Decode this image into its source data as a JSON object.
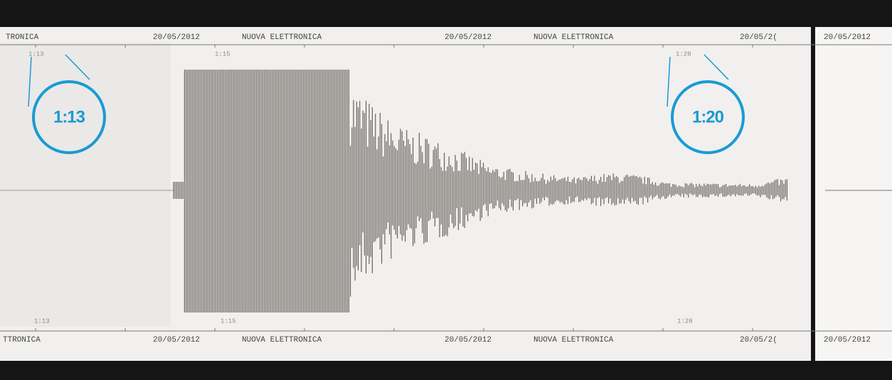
{
  "header": {
    "labels": [
      "TRONICA",
      "20/05/2012",
      "NUOVA ELETTRONICA",
      "20/05/2012",
      "NUOVA ELETTRONICA",
      "20/05/2(",
      "20/05/2012"
    ]
  },
  "top_times": [
    "1:13",
    "1:15",
    "1:20"
  ],
  "callouts": [
    "1:13",
    "1:20"
  ],
  "bottom_times": [
    "1:13",
    "1:15",
    "1:20"
  ],
  "footer": {
    "labels": [
      "TTRONICA",
      "20/05/2012",
      "NUOVA ELETTRONICA",
      "20/05/2012",
      "NUOVA ELETTRONICA",
      "20/05/2(",
      "20/05/2012"
    ]
  }
}
